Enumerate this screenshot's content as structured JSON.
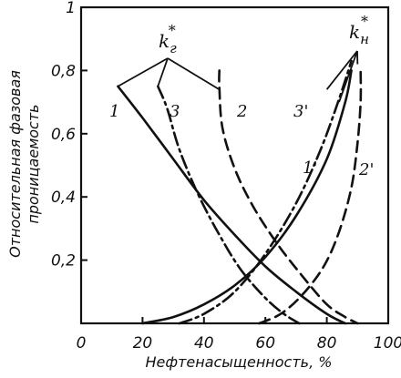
{
  "chart_data": {
    "type": "line",
    "xlabel": "Нефтенасыщенность, %",
    "ylabel_line1": "Относительная фазовая",
    "ylabel_line2": "проницаемость",
    "xlim": [
      0,
      100
    ],
    "ylim": [
      0,
      1
    ],
    "x_ticks": [
      0,
      20,
      40,
      60,
      80,
      100
    ],
    "x_tick_labels": [
      "0",
      "20",
      "40",
      "60",
      "80",
      "100"
    ],
    "y_ticks": [
      0.2,
      0.4,
      0.6,
      0.8,
      1
    ],
    "y_tick_labels": [
      "0,2",
      "0,4",
      "0,6",
      "0,8",
      "1"
    ],
    "grid": false,
    "group_labels": {
      "gas": {
        "symbol": "k",
        "sub": "г",
        "sup": "*"
      },
      "oil": {
        "symbol": "k",
        "sub": "н",
        "sup": "*"
      }
    },
    "series": [
      {
        "name": "1",
        "group": "gas",
        "style": "solid",
        "x": [
          12,
          20,
          30,
          40,
          50,
          60,
          70,
          80,
          86
        ],
        "y": [
          0.75,
          0.65,
          0.52,
          0.39,
          0.28,
          0.18,
          0.1,
          0.03,
          0
        ]
      },
      {
        "name": "3",
        "group": "gas",
        "style": "dashdot",
        "x": [
          25,
          28,
          32,
          38,
          45,
          52,
          60,
          66,
          71
        ],
        "y": [
          0.75,
          0.68,
          0.55,
          0.41,
          0.28,
          0.17,
          0.08,
          0.03,
          0
        ]
      },
      {
        "name": "2",
        "group": "gas",
        "style": "dashed",
        "x": [
          45,
          45,
          46,
          50,
          56,
          64,
          72,
          80,
          86,
          90
        ],
        "y": [
          0.8,
          0.75,
          0.62,
          0.49,
          0.37,
          0.25,
          0.15,
          0.06,
          0.02,
          0
        ]
      },
      {
        "name": "3'",
        "group": "oil",
        "style": "dashdot",
        "x": [
          32,
          40,
          50,
          60,
          70,
          78,
          84,
          88
        ],
        "y": [
          0,
          0.03,
          0.1,
          0.22,
          0.38,
          0.55,
          0.71,
          0.83
        ]
      },
      {
        "name": "1'",
        "group": "oil",
        "style": "solid",
        "x": [
          20,
          30,
          40,
          50,
          60,
          70,
          80,
          86,
          88
        ],
        "y": [
          0,
          0.02,
          0.06,
          0.12,
          0.21,
          0.34,
          0.52,
          0.7,
          0.8
        ]
      },
      {
        "name": "2'",
        "group": "oil",
        "style": "dashed",
        "x": [
          58,
          65,
          72,
          79,
          84,
          88,
          90,
          91,
          91
        ],
        "y": [
          0,
          0.03,
          0.09,
          0.18,
          0.29,
          0.43,
          0.57,
          0.7,
          0.8
        ]
      }
    ]
  }
}
